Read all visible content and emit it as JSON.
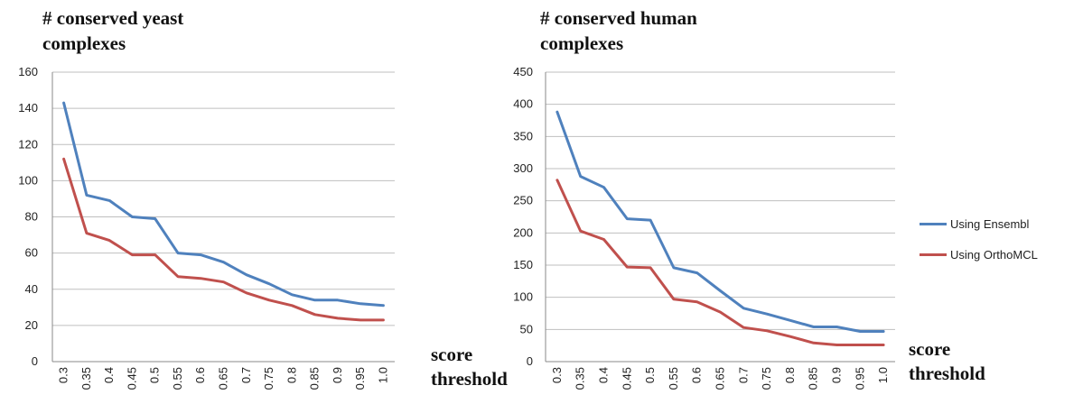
{
  "colors": {
    "ensembl": "#4f81bd",
    "orthomcl": "#c0504d",
    "grid": "#bfbfbf",
    "axis": "#888888"
  },
  "legend": [
    {
      "label": "Using Ensembl",
      "color": "#4f81bd"
    },
    {
      "label": "Using OrthoMCL",
      "color": "#c0504d"
    }
  ],
  "chart_data": [
    {
      "type": "line",
      "title_lines": [
        "# conserved yeast",
        "complexes"
      ],
      "xlabel_lines": [
        "score",
        "threshold"
      ],
      "categories": [
        "0.3",
        "0.35",
        "0.4",
        "0.45",
        "0.5",
        "0.55",
        "0.6",
        "0.65",
        "0.7",
        "0.75",
        "0.8",
        "0.85",
        "0.9",
        "0.95",
        "1.0"
      ],
      "ylim": [
        0,
        160
      ],
      "yticks": [
        0,
        20,
        40,
        60,
        80,
        100,
        120,
        140,
        160
      ],
      "grid": true,
      "series": [
        {
          "name": "Using Ensembl",
          "color": "#4f81bd",
          "values": [
            143,
            92,
            89,
            80,
            79,
            60,
            59,
            55,
            48,
            43,
            37,
            34,
            34,
            32,
            31
          ]
        },
        {
          "name": "Using OrthoMCL",
          "color": "#c0504d",
          "values": [
            112,
            71,
            67,
            59,
            59,
            47,
            46,
            44,
            38,
            34,
            31,
            26,
            24,
            23,
            23
          ]
        }
      ]
    },
    {
      "type": "line",
      "title_lines": [
        "# conserved human",
        "complexes"
      ],
      "xlabel_lines": [
        "score",
        "threshold"
      ],
      "categories": [
        "0.3",
        "0.35",
        "0.4",
        "0.45",
        "0.5",
        "0.55",
        "0.6",
        "0.65",
        "0.7",
        "0.75",
        "0.8",
        "0.85",
        "0.9",
        "0.95",
        "1.0"
      ],
      "ylim": [
        0,
        450
      ],
      "yticks": [
        0,
        50,
        100,
        150,
        200,
        250,
        300,
        350,
        400,
        450
      ],
      "grid": true,
      "legend": "right",
      "series": [
        {
          "name": "Using Ensembl",
          "color": "#4f81bd",
          "values": [
            388,
            288,
            271,
            222,
            220,
            146,
            138,
            110,
            83,
            74,
            64,
            54,
            54,
            47,
            47
          ]
        },
        {
          "name": "Using OrthoMCL",
          "color": "#c0504d",
          "values": [
            282,
            203,
            190,
            147,
            146,
            97,
            93,
            77,
            53,
            48,
            39,
            29,
            26,
            26,
            26
          ]
        }
      ]
    }
  ]
}
